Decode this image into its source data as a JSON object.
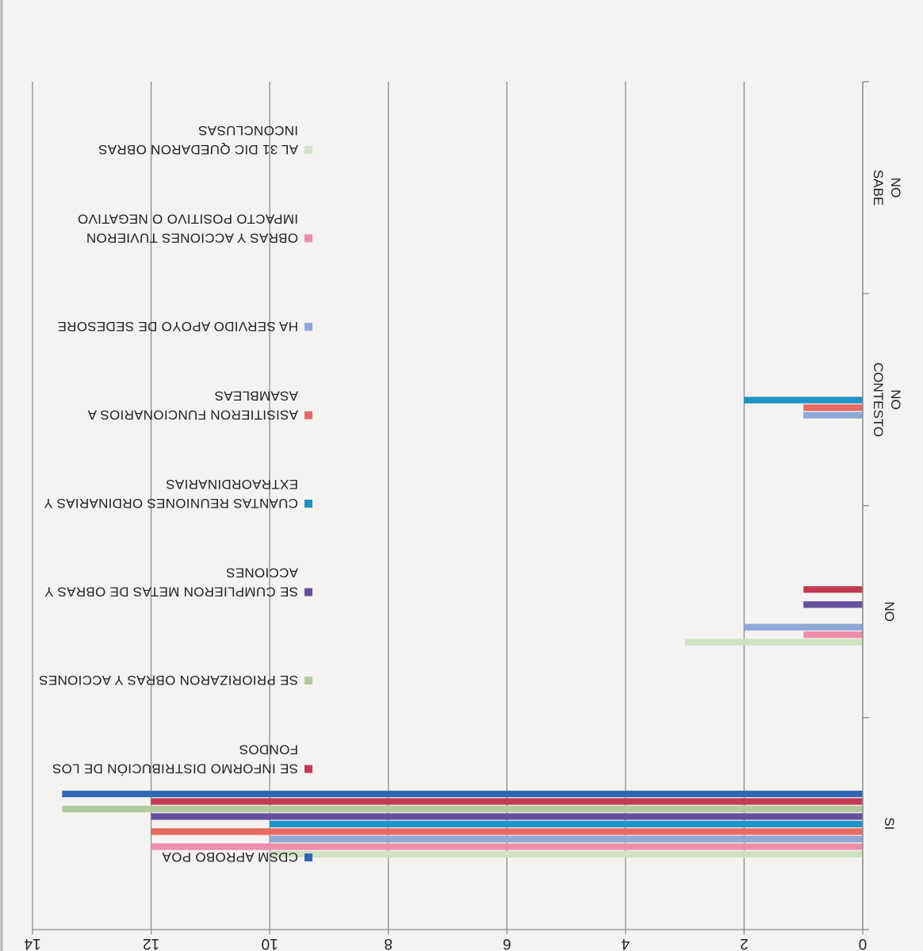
{
  "chart_data": {
    "type": "bar",
    "orientation": "horizontal",
    "categories": [
      "SI",
      "NO",
      "NO CONTESTO",
      "NO SABE"
    ],
    "xlim": [
      0,
      14
    ],
    "xticks": [
      "0",
      "2",
      "4",
      "6",
      "8",
      "10",
      "12",
      "14"
    ],
    "grid": true,
    "legend_position": "right",
    "series": [
      {
        "name": "CDSM APROBO POA",
        "color": "#2f67b6",
        "values": [
          13.5,
          0,
          0,
          0
        ]
      },
      {
        "name": "SE INFORMO DISTRIBUCIÓN DE LOS FONDOS",
        "color": "#c23b53",
        "values": [
          12,
          1,
          0,
          0
        ]
      },
      {
        "name": "SE PRIORIZARON OBRAS Y ACCIONES",
        "color": "#b4c99e",
        "values": [
          13.5,
          0,
          0,
          0
        ]
      },
      {
        "name": "SE CUMPLIERON METAS DE OBRAS Y ACCIONES",
        "color": "#6650a0",
        "values": [
          12,
          1,
          0,
          0
        ]
      },
      {
        "name": "CUANTAS REUNIONES ORDINARIAS Y EXTRAORDINARIAS",
        "color": "#1d93c8",
        "values": [
          10,
          0,
          2,
          0
        ]
      },
      {
        "name": "ASISITIERON FUNCIONARIOS A ASAMBLEAS",
        "color": "#e76a63",
        "values": [
          12,
          0,
          1,
          0
        ]
      },
      {
        "name": "HA SERVIDO APOYO DE SEDESORE",
        "color": "#8ea8d8",
        "values": [
          10,
          2,
          1,
          0
        ]
      },
      {
        "name": "OBRAS Y ACCIONES TUVIERON IMPACTO POSITIVO O NEGATIVO",
        "color": "#ef8eab",
        "values": [
          12,
          1,
          0,
          0
        ]
      },
      {
        "name": "AL 31 DIC QUEDARON OBRAS INCONCLUSAS",
        "color": "#cfe1c2",
        "values": [
          10,
          3,
          0,
          0
        ]
      }
    ]
  }
}
